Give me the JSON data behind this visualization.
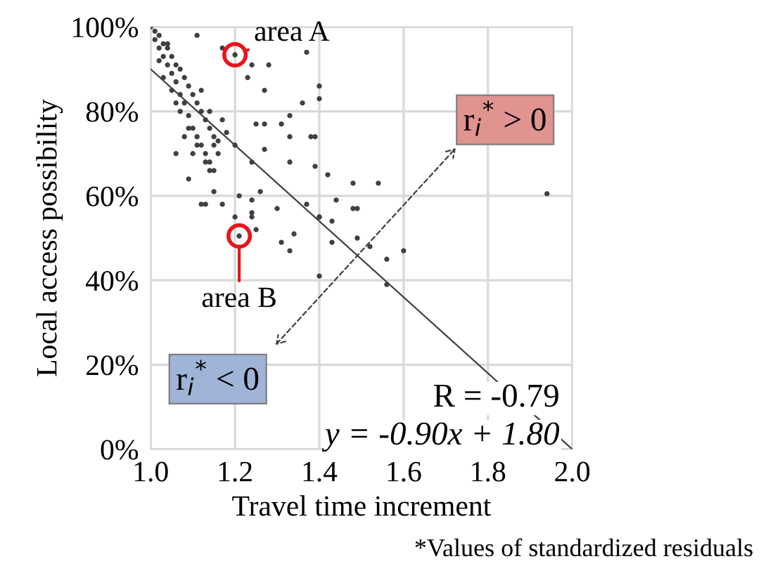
{
  "chart_data": {
    "type": "scatter",
    "xlabel": "Travel time increment",
    "ylabel": "Local access possibility",
    "xlim": [
      1.0,
      2.0
    ],
    "xticks": [
      {
        "value": 1.0,
        "label": "1.0"
      },
      {
        "value": 1.2,
        "label": "1.2"
      },
      {
        "value": 1.4,
        "label": "1.4"
      },
      {
        "value": 1.6,
        "label": "1.6"
      },
      {
        "value": 1.8,
        "label": "1.8"
      },
      {
        "value": 2.0,
        "label": "2.0"
      }
    ],
    "ylim": [
      0,
      100
    ],
    "yticks": [
      {
        "value": 0,
        "label": "0%"
      },
      {
        "value": 20,
        "label": "20%"
      },
      {
        "value": 40,
        "label": "40%"
      },
      {
        "value": 60,
        "label": "60%"
      },
      {
        "value": 80,
        "label": "80%"
      },
      {
        "value": 100,
        "label": "100%"
      }
    ],
    "grid": true,
    "series": [
      {
        "marker": "circle",
        "color": "#404040",
        "x": [
          1.0,
          1.01,
          1.01,
          1.02,
          1.02,
          1.03,
          1.03,
          1.04,
          1.04,
          1.05,
          1.05,
          1.06,
          1.06,
          1.07,
          1.07,
          1.08,
          1.08,
          1.09,
          1.09,
          1.1,
          1.1,
          1.11,
          1.11,
          1.12,
          1.12,
          1.13,
          1.13,
          1.14,
          1.14,
          1.15,
          1.15,
          1.16,
          1.03,
          1.05,
          1.07,
          1.09,
          1.11,
          1.13,
          1.15,
          1.17,
          1.06,
          1.08,
          1.1,
          1.12,
          1.14,
          1.16,
          1.18,
          1.2,
          1.02,
          1.04,
          1.11,
          1.17,
          1.2,
          1.37,
          1.28,
          1.24,
          1.23,
          1.27,
          1.4,
          1.4,
          1.36,
          1.33,
          1.31,
          1.27,
          1.25,
          1.38,
          1.39,
          1.33,
          1.27,
          1.33,
          1.39,
          1.42,
          1.48,
          1.54,
          1.37,
          1.48,
          1.4,
          1.3,
          1.24,
          1.2,
          1.13,
          1.17,
          1.09,
          1.06,
          1.14,
          1.24,
          1.26,
          1.24,
          1.21,
          1.12,
          1.15,
          1.24,
          1.31,
          1.34,
          1.33,
          1.25,
          1.21,
          1.4,
          1.43,
          1.43,
          1.49,
          1.52,
          1.56,
          1.6,
          1.56,
          1.4,
          1.49,
          1.44,
          1.94
        ],
        "values": [
          100,
          99,
          97,
          98,
          95,
          96,
          93,
          95,
          91,
          93,
          89,
          91,
          87,
          90,
          84,
          88,
          82,
          86,
          79,
          84,
          76,
          82,
          74,
          80,
          72,
          78,
          70,
          76,
          68,
          74,
          72,
          70,
          88,
          85,
          80,
          76,
          72,
          68,
          66,
          78,
          82,
          74,
          70,
          85,
          80,
          73,
          75,
          72,
          92,
          96,
          98,
          95,
          93.4,
          94,
          91,
          91,
          88,
          85,
          86,
          83,
          82,
          79,
          77,
          77,
          77,
          74,
          74,
          74,
          71,
          68,
          67,
          65,
          63,
          63,
          58,
          57,
          55,
          57,
          56,
          55,
          58,
          58,
          64,
          70,
          66,
          68,
          61,
          59,
          60,
          58,
          61,
          55,
          49,
          51,
          47,
          52,
          50.5,
          55,
          54,
          49,
          50,
          48,
          45,
          47,
          39,
          41,
          57,
          59,
          60.5
        ]
      },
      {
        "type": "line",
        "marker": "none",
        "color": "#404040",
        "x": [
          1.0,
          2.0
        ],
        "values": [
          90,
          0
        ]
      }
    ],
    "annotations": [
      {
        "text": "area A",
        "x": 1.2,
        "y": 93.4
      },
      {
        "text": "area B",
        "x": 1.21,
        "y": 50.5
      },
      "r$_{i}$$^{*}$ > 0",
      "r$_{i}$$^{*}$ < 0",
      "R = -0.79",
      "y = -0.90x + 1.80",
      "*Values of standardized residuals"
    ]
  }
}
